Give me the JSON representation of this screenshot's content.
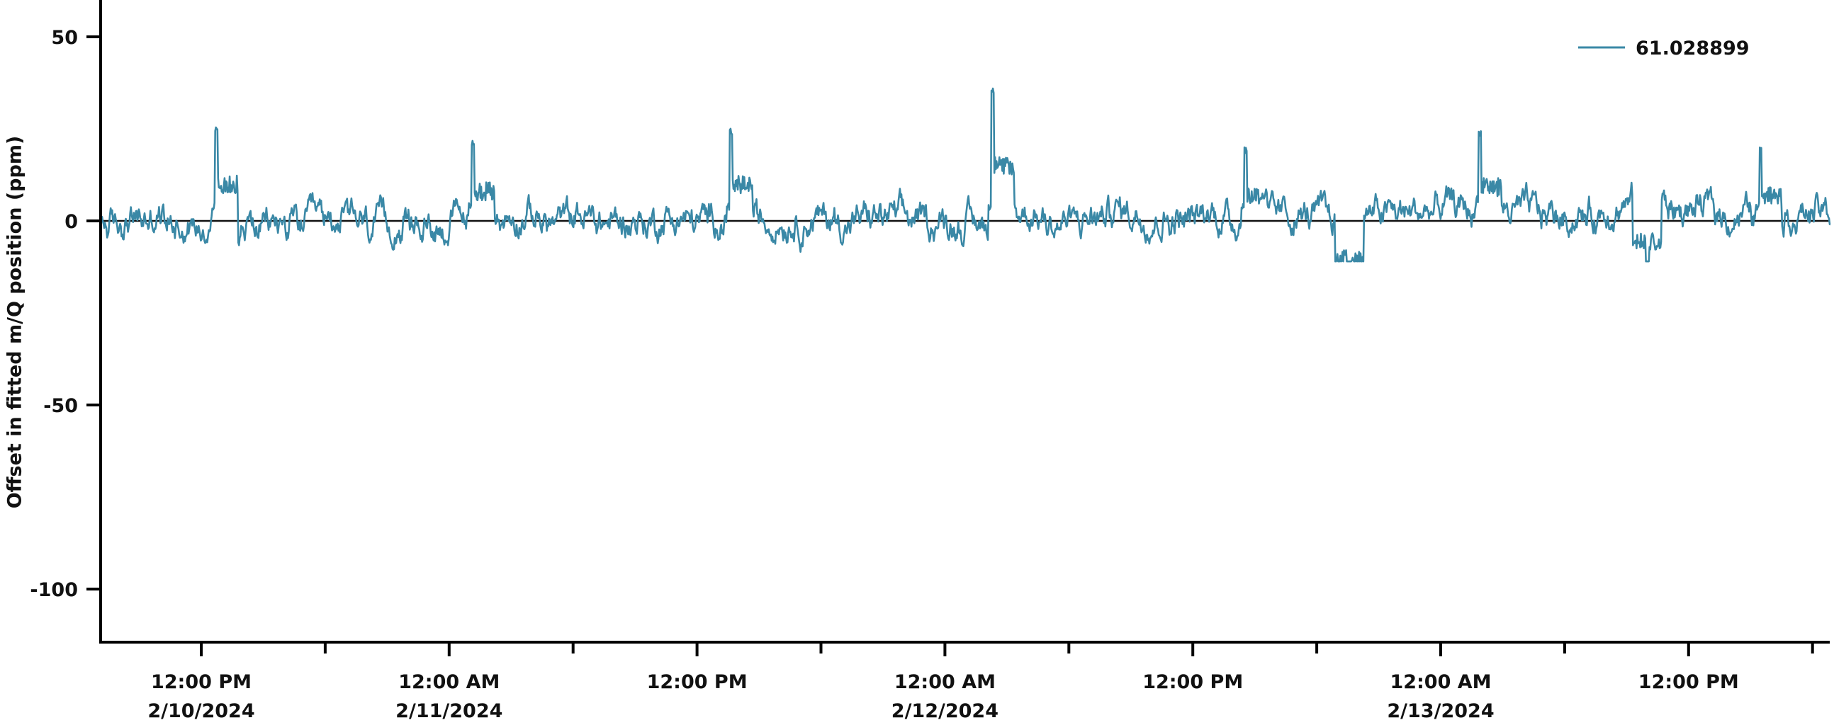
{
  "chart_data": {
    "type": "line",
    "title": "",
    "xlabel": "",
    "ylabel": "Offset in fitted m/Q position (ppm)",
    "ylim": [
      -114.4,
      60
    ],
    "y_ticks": [
      50,
      0,
      -50,
      -100
    ],
    "y_tick_labels": [
      "50",
      "0",
      "-50",
      "-100"
    ],
    "x_range": [
      "2/10/2024 7:04 AM",
      "2/13/2024 6:50 PM"
    ],
    "x_major_ticks": [
      {
        "time": "2/10/2024 12:00 PM",
        "line1": "12:00 PM",
        "line2": "2/10/2024"
      },
      {
        "time": "2/11/2024 12:00 AM",
        "line1": "12:00 AM",
        "line2": "2/11/2024"
      },
      {
        "time": "2/11/2024 12:00 PM",
        "line1": "12:00 PM",
        "line2": ""
      },
      {
        "time": "2/12/2024 12:00 AM",
        "line1": "12:00 AM",
        "line2": "2/12/2024"
      },
      {
        "time": "2/12/2024 12:00 PM",
        "line1": "12:00 PM",
        "line2": ""
      },
      {
        "time": "2/13/2024 12:00 AM",
        "line1": "12:00 AM",
        "line2": "2/13/2024"
      },
      {
        "time": "2/13/2024 12:00 PM",
        "line1": "12:00 PM",
        "line2": ""
      }
    ],
    "x_minor_tick_interval_hours": 6,
    "grid": false,
    "zero_line": true,
    "legend": {
      "position": "top-right",
      "entries": [
        "61.028899"
      ]
    },
    "series": [
      {
        "name": "61.028899",
        "color": "#3a88a6",
        "description": "Noisy time series fluctuating roughly between -10 and +12 ppm around 0, with short positive spikes and one negative dip",
        "baseline_range": [
          -10,
          12
        ],
        "features": [
          {
            "time": "2/10/2024 12:40 PM",
            "value": 26,
            "kind": "spike"
          },
          {
            "time": "2/11/2024 1:05 AM",
            "value": 22,
            "kind": "spike"
          },
          {
            "time": "2/11/2024 1:35 PM",
            "value": 25.5,
            "kind": "spike"
          },
          {
            "time": "2/12/2024 2:15 AM",
            "value": 36,
            "kind": "spike"
          },
          {
            "time": "2/12/2024 2:30 PM",
            "value": 20,
            "kind": "spike"
          },
          {
            "time": "2/12/2024 7:35 PM",
            "value": -23,
            "kind": "dip"
          },
          {
            "time": "2/13/2024 1:50 AM",
            "value": 24.4,
            "kind": "spike"
          },
          {
            "time": "2/13/2024 10:00 AM",
            "value": -13,
            "kind": "dip"
          },
          {
            "time": "2/13/2024 3:25 PM",
            "value": 20,
            "kind": "spike"
          }
        ]
      }
    ]
  },
  "legend": {
    "label": "61.028899",
    "color": "#3a88a6"
  },
  "axes": {
    "ylabel": "Offset in fitted m/Q position (ppm)"
  }
}
